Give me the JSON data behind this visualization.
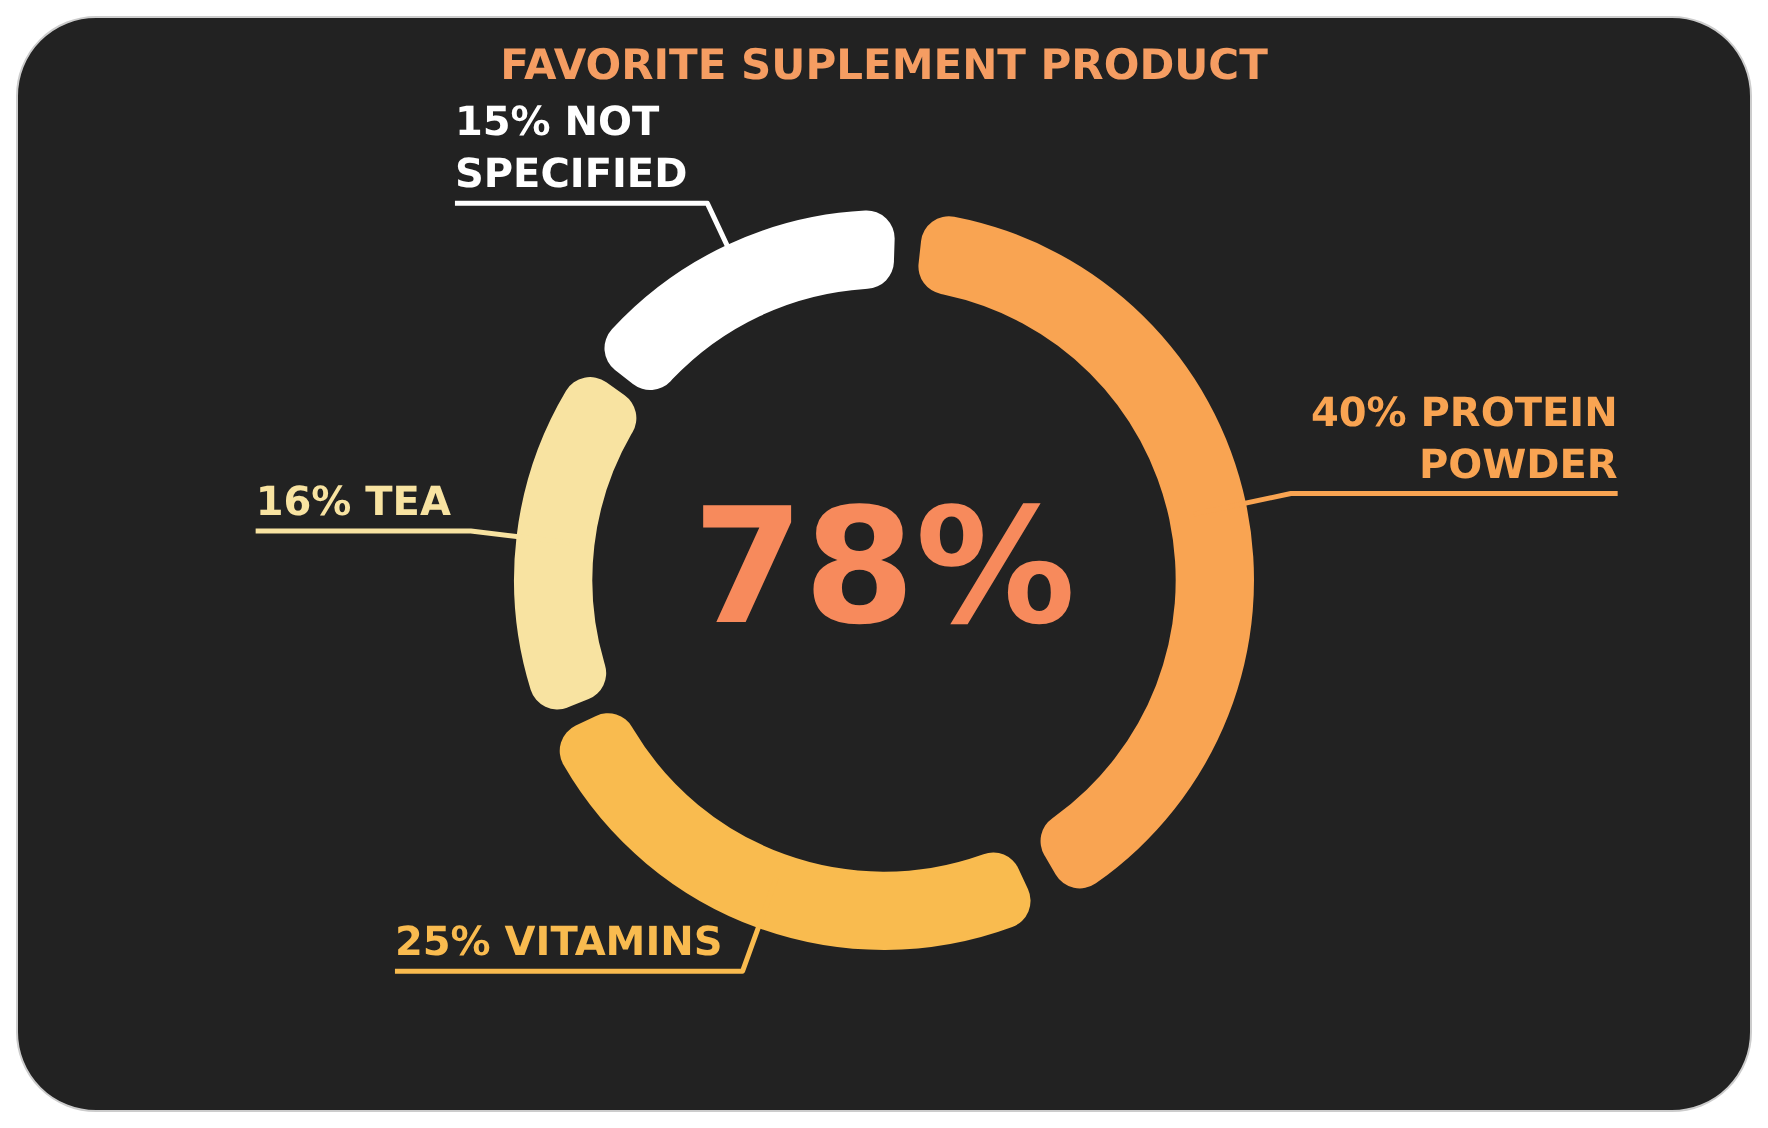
{
  "chart_data": {
    "type": "donut",
    "title": "FAVORITE SUPLEMENT PRODUCT",
    "categories": [
      "PROTEIN POWDER",
      "VITAMINS",
      "TEA",
      "NOT SPECIFIED"
    ],
    "values": [
      40,
      25,
      16,
      15
    ],
    "value_labels": [
      "40%",
      "25%",
      "16%",
      "15%"
    ],
    "colors": [
      "#f9a452",
      "#f9bb4f",
      "#f8e3a1",
      "#ffffff"
    ],
    "annotations": [
      "78%"
    ],
    "legend": false
  }
}
